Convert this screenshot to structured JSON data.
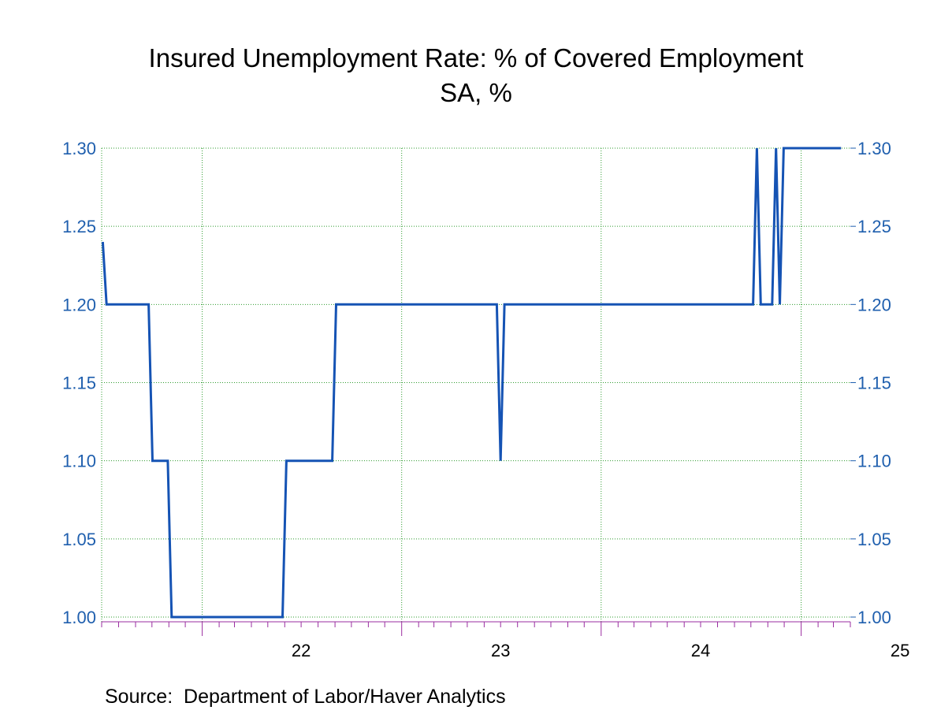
{
  "chart_data": {
    "type": "line",
    "title": "Insured Unemployment Rate: % of Covered Employment",
    "subtitle": "SA, %",
    "source": "Source:  Department of Labor/Haver Analytics",
    "x_start": "2021-07",
    "x_end": "2025-04",
    "x_tick_labels": [
      {
        "label": "22",
        "year": 2022
      },
      {
        "label": "23",
        "year": 2023
      },
      {
        "label": "24",
        "year": 2024
      },
      {
        "label": "25",
        "year": 2025
      }
    ],
    "y_ticks": [
      "1.00",
      "1.05",
      "1.10",
      "1.15",
      "1.20",
      "1.25",
      "1.30"
    ],
    "ylim": [
      1.0,
      1.3
    ],
    "grid": true,
    "right_axis": true,
    "series": [
      {
        "frequency": "weekly",
        "color": "#1553b4",
        "points": [
          [
            "2021-07-03",
            1.24
          ],
          [
            "2021-07-10",
            1.2
          ],
          [
            "2021-09-25",
            1.2
          ],
          [
            "2021-10-02",
            1.1
          ],
          [
            "2021-10-30",
            1.1
          ],
          [
            "2021-11-06",
            1.0
          ],
          [
            "2022-05-28",
            1.0
          ],
          [
            "2022-06-04",
            1.1
          ],
          [
            "2022-08-27",
            1.1
          ],
          [
            "2022-09-03",
            1.2
          ],
          [
            "2023-06-24",
            1.2
          ],
          [
            "2023-07-01",
            1.1
          ],
          [
            "2023-07-08",
            1.2
          ],
          [
            "2024-10-05",
            1.2
          ],
          [
            "2024-10-12",
            1.3
          ],
          [
            "2024-10-19",
            1.2
          ],
          [
            "2024-11-09",
            1.2
          ],
          [
            "2024-11-16",
            1.3
          ],
          [
            "2024-11-23",
            1.2
          ],
          [
            "2024-11-30",
            1.3
          ],
          [
            "2025-03-15",
            1.3
          ]
        ]
      }
    ],
    "colors": {
      "axis_text": "#1f5fae",
      "grid": "#2e9b2e",
      "axis_line": "#9a2da0",
      "line": "#1553b4"
    }
  },
  "source_note": "Source:  Department of Labor/Haver Analytics"
}
